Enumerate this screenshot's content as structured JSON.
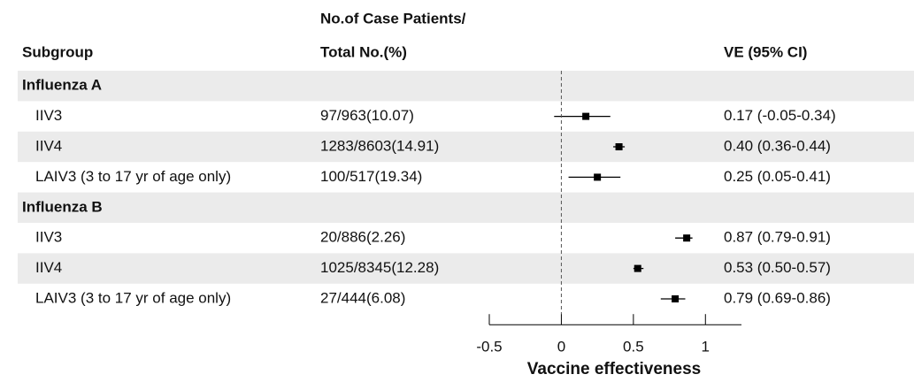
{
  "chart_data": {
    "type": "forest",
    "headers": {
      "subgroup": "Subgroup",
      "cases_top": "No.of Case Patients/",
      "cases": "Total No.(%)",
      "ve": "VE (95% CI)"
    },
    "groups": [
      {
        "name": "Influenza A",
        "rows": [
          {
            "label": "IIV3",
            "cases": "97/963(10.07)",
            "ve_label": "0.17 (-0.05-0.34)",
            "value": 0.17,
            "lower": -0.05,
            "upper": 0.34
          },
          {
            "label": "IIV4",
            "cases": "1283/8603(14.91)",
            "ve_label": "0.40 (0.36-0.44)",
            "value": 0.4,
            "lower": 0.36,
            "upper": 0.44
          },
          {
            "label": "LAIV3 (3 to 17 yr of age only)",
            "cases": "100/517(19.34)",
            "ve_label": "0.25 (0.05-0.41)",
            "value": 0.25,
            "lower": 0.05,
            "upper": 0.41
          }
        ]
      },
      {
        "name": "Influenza B",
        "rows": [
          {
            "label": "IIV3",
            "cases": "20/886(2.26)",
            "ve_label": "0.87 (0.79-0.91)",
            "value": 0.87,
            "lower": 0.79,
            "upper": 0.91
          },
          {
            "label": "IIV4",
            "cases": "1025/8345(12.28)",
            "ve_label": "0.53 (0.50-0.57)",
            "value": 0.53,
            "lower": 0.5,
            "upper": 0.57
          },
          {
            "label": "LAIV3 (3 to 17 yr of age only)",
            "cases": "27/444(6.08)",
            "ve_label": "0.79 (0.69-0.86)",
            "value": 0.79,
            "lower": 0.69,
            "upper": 0.86
          }
        ]
      }
    ],
    "xlabel": "Vaccine effectiveness",
    "xlim": [
      -0.5,
      1.25
    ],
    "xticks": [
      -0.5,
      0,
      0.5,
      1
    ],
    "reference_line": 0,
    "color": "#000000",
    "band_color": "#ebebeb"
  }
}
